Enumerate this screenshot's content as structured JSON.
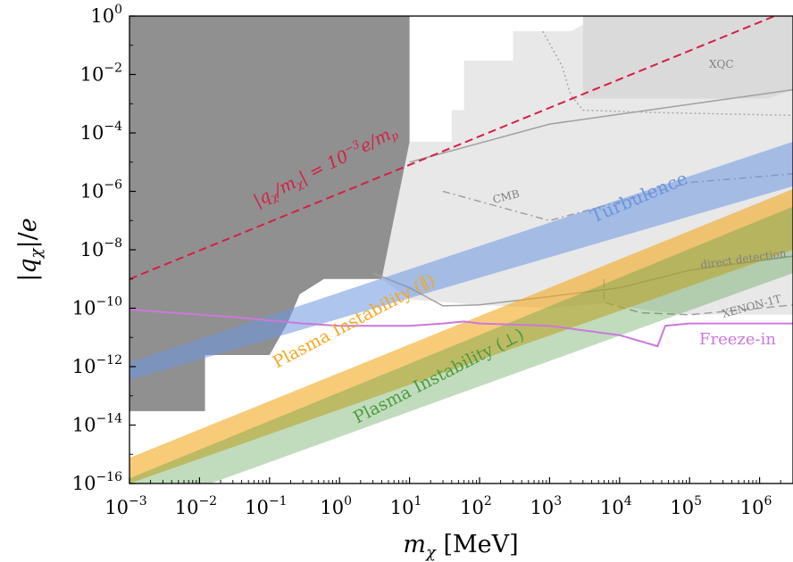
{
  "chart_data": {
    "type": "area",
    "title": "",
    "xlabel": "m_χ [MeV]",
    "ylabel": "|q_χ|/e",
    "x_scale": "log",
    "y_scale": "log",
    "xlim": [
      0.001,
      3000000
    ],
    "ylim": [
      1e-16,
      1
    ],
    "grid": false,
    "x_ticks": [
      {
        "base": "10",
        "exp": "−3",
        "value": 0.001
      },
      {
        "base": "10",
        "exp": "−2",
        "value": 0.01
      },
      {
        "base": "10",
        "exp": "−1",
        "value": 0.1
      },
      {
        "base": "10",
        "exp": "0",
        "value": 1
      },
      {
        "base": "10",
        "exp": "1",
        "value": 10
      },
      {
        "base": "10",
        "exp": "2",
        "value": 100
      },
      {
        "base": "10",
        "exp": "3",
        "value": 1000
      },
      {
        "base": "10",
        "exp": "4",
        "value": 10000
      },
      {
        "base": "10",
        "exp": "5",
        "value": 100000
      },
      {
        "base": "10",
        "exp": "6",
        "value": 1000000
      }
    ],
    "y_ticks": [
      {
        "base": "10",
        "exp": "0",
        "value": 1
      },
      {
        "base": "10",
        "exp": "−2",
        "value": 0.01
      },
      {
        "base": "10",
        "exp": "−4",
        "value": 0.0001
      },
      {
        "base": "10",
        "exp": "−6",
        "value": 1e-06
      },
      {
        "base": "10",
        "exp": "−8",
        "value": 1e-08
      },
      {
        "base": "10",
        "exp": "−10",
        "value": 1e-10
      },
      {
        "base": "10",
        "exp": "−12",
        "value": 1e-12
      },
      {
        "base": "10",
        "exp": "−14",
        "value": 1e-14
      },
      {
        "base": "10",
        "exp": "−16",
        "value": 1e-16
      }
    ],
    "regions": [
      {
        "id": "excluded-dark",
        "color": "#909090",
        "points": [
          [
            0.001,
            1
          ],
          [
            10,
            1
          ],
          [
            10,
            1e-09
          ],
          [
            0.6,
            1e-09
          ],
          [
            0.27,
            3e-10
          ],
          [
            0.18,
            3e-11
          ],
          [
            0.1,
            2.5e-12
          ],
          [
            0.012,
            2.5e-12
          ],
          [
            0.012,
            3e-14
          ],
          [
            0.001,
            3e-14
          ]
        ]
      },
      {
        "id": "excluded-light",
        "color": "#e8e8e8",
        "points": [
          [
            10,
            5e-05
          ],
          [
            40,
            5e-05
          ],
          [
            40,
            0.0006
          ],
          [
            60,
            0.0006
          ],
          [
            60,
            0.03
          ],
          [
            300,
            0.03
          ],
          [
            300,
            0.3
          ],
          [
            2000,
            0.3
          ],
          [
            3000,
            0.5
          ],
          [
            3000000,
            0.5
          ],
          [
            3000000,
            6e-11
          ],
          [
            100000,
            6e-11
          ],
          [
            30000,
            8e-11
          ],
          [
            6000,
            1.5e-10
          ],
          [
            1000,
            1e-10
          ],
          [
            100,
            1.3e-10
          ],
          [
            10,
            2e-10
          ],
          [
            4,
            1e-09
          ],
          [
            10,
            5e-05
          ]
        ]
      },
      {
        "id": "excluded-mid",
        "color": "#dadada",
        "points": [
          [
            3000,
            1
          ],
          [
            3000000,
            1
          ],
          [
            3000000,
            0.003
          ],
          [
            1300000,
            0.0015
          ],
          [
            3000,
            0.0015
          ]
        ]
      }
    ],
    "curves": [
      {
        "id": "xqc",
        "color": "#a0a0a0",
        "style": "solid",
        "points": [
          [
            10,
            1e-05
          ],
          [
            1000,
            0.0002
          ],
          [
            3000000,
            0.003
          ]
        ]
      },
      {
        "id": "xqc-boundary",
        "color": "#a8a8a8",
        "style": "dotted",
        "points": [
          [
            800,
            0.3
          ],
          [
            1500,
            0.02
          ],
          [
            2000,
            0.002
          ],
          [
            3000,
            0.0006
          ],
          [
            30000,
            0.0005
          ],
          [
            3000000,
            0.0004
          ]
        ]
      },
      {
        "id": "cmb",
        "color": "#a0a0a0",
        "style": "dashdot",
        "points": [
          [
            30,
            1e-06
          ],
          [
            1000,
            1e-07
          ],
          [
            100000,
            2e-06
          ],
          [
            3000000,
            4e-06
          ]
        ]
      },
      {
        "id": "direct-detection",
        "color": "#a0a0a0",
        "style": "solid",
        "points": [
          [
            3,
            1.6e-09
          ],
          [
            10,
            5e-10
          ],
          [
            30,
            1.2e-10
          ],
          [
            100,
            1.3e-10
          ],
          [
            1000,
            2.5e-10
          ],
          [
            10000,
            5e-10
          ],
          [
            100000,
            2e-09
          ],
          [
            3000000,
            6e-09
          ]
        ]
      },
      {
        "id": "xenon-1t",
        "color": "#a0a0a0",
        "style": "dashed",
        "points": [
          [
            6000,
            1e-09
          ],
          [
            6000,
            1.6e-10
          ],
          [
            20000,
            7e-11
          ],
          [
            100000,
            6e-11
          ],
          [
            1000000,
            1e-10
          ],
          [
            3000000,
            1.3e-10
          ]
        ]
      }
    ],
    "bands": [
      {
        "id": "turbulence",
        "name": "Turbulence",
        "color": "#6c95e0",
        "opacity": 0.55,
        "lower": [
          [
            0.001,
            3.5e-13
          ],
          [
            3000000,
            1.5e-06
          ]
        ],
        "upper": [
          [
            0.001,
            1.4e-12
          ],
          [
            3000000,
            5e-05
          ]
        ]
      },
      {
        "id": "plasma-parallel",
        "name": "Plasma Instability (∥)",
        "color": "#f3a820",
        "opacity": 0.6,
        "lower": [
          [
            0.001,
            1e-16
          ],
          [
            3000000,
            1e-08
          ]
        ],
        "upper": [
          [
            0.001,
            7.5e-16
          ],
          [
            3000000,
            1.2e-06
          ]
        ]
      },
      {
        "id": "plasma-perp",
        "name": "Plasma Instability (⊥)",
        "color": "#4c9b3e",
        "opacity": 0.35,
        "lower": [
          [
            0.001,
            1e-17
          ],
          [
            3000000,
            1.6e-09
          ]
        ],
        "upper": [
          [
            0.001,
            1.5e-16
          ],
          [
            3000000,
            3e-07
          ]
        ]
      }
    ],
    "lines": [
      {
        "id": "reference",
        "color": "#d42045",
        "style": "dashed",
        "points": [
          [
            0.001,
            1e-09
          ],
          [
            3000000,
            1.8
          ]
        ]
      },
      {
        "id": "freeze-in",
        "color": "#cc77dd",
        "style": "solid",
        "points": [
          [
            0.001,
            9e-11
          ],
          [
            0.03,
            5e-11
          ],
          [
            0.3,
            3e-11
          ],
          [
            1,
            2.5e-11
          ],
          [
            10,
            2.5e-11
          ],
          [
            30,
            3e-11
          ],
          [
            60,
            3.5e-11
          ],
          [
            100,
            3e-11
          ],
          [
            1000,
            2.5e-11
          ],
          [
            10000,
            1.2e-11
          ],
          [
            35000,
            5e-12
          ],
          [
            45000,
            2.5e-11
          ],
          [
            100000,
            3e-11
          ],
          [
            3000000,
            3e-11
          ]
        ]
      }
    ],
    "annotations": [
      {
        "id": "reference-label",
        "text_html": "|q<tspan font-size='12' dy='3'>χ</tspan><tspan dy='-3'>/m</tspan><tspan font-size='12' dy='3'>χ</tspan><tspan dy='-3'>| = 10</tspan><tspan font-size='12' dy='-8'>−3</tspan><tspan dy='8'>e/m</tspan><tspan font-size='12' dy='3'>p</tspan>",
        "color": "#d42045",
        "italic": true
      },
      {
        "id": "turbulence-label",
        "text": "Turbulence",
        "color": "#6c95e0"
      },
      {
        "id": "plasma-parallel-label",
        "text": "Plasma Instability (∥)",
        "color": "#f3a820"
      },
      {
        "id": "plasma-perp-label",
        "text": "Plasma Instability (⊥)",
        "color": "#4c9b3e"
      },
      {
        "id": "freeze-in-label",
        "text": "Freeze-in",
        "color": "#cc77dd"
      },
      {
        "id": "xqc-label",
        "text": "XQC",
        "color": "#808080"
      },
      {
        "id": "cmb-label",
        "text": "CMB",
        "color": "#808080"
      },
      {
        "id": "direct-detection-label",
        "text": "direct detection",
        "color": "#808080"
      },
      {
        "id": "xenon-label",
        "text": "XENON-1T",
        "color": "#808080"
      }
    ]
  }
}
